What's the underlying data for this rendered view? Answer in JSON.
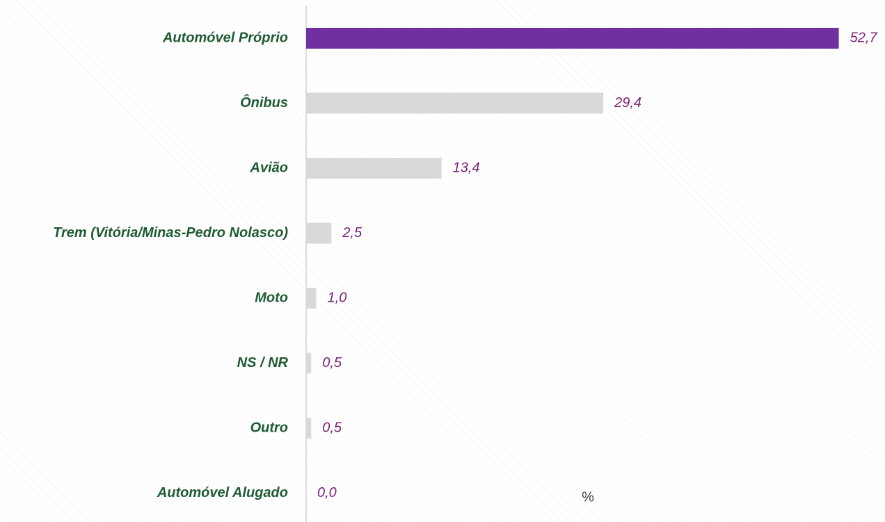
{
  "chart_data": {
    "type": "bar",
    "orientation": "horizontal",
    "categories": [
      "Automóvel Próprio",
      "Ônibus",
      "Avião",
      "Trem (Vitória/Minas-Pedro Nolasco)",
      "Moto",
      "NS / NR",
      "Outro",
      "Automóvel Alugado"
    ],
    "values": [
      52.7,
      29.4,
      13.4,
      2.5,
      1.0,
      0.5,
      0.5,
      0.0
    ],
    "value_labels": [
      "52,7",
      "29,4",
      "13,4",
      "2,5",
      "1,0",
      "0,5",
      "0,5",
      "0,0"
    ],
    "colors": [
      "#7030a0",
      "#d9d9d9",
      "#d9d9d9",
      "#d9d9d9",
      "#d9d9d9",
      "#d9d9d9",
      "#d9d9d9",
      "#d9d9d9"
    ],
    "xlabel": "%",
    "xlim": [
      0,
      55
    ]
  }
}
